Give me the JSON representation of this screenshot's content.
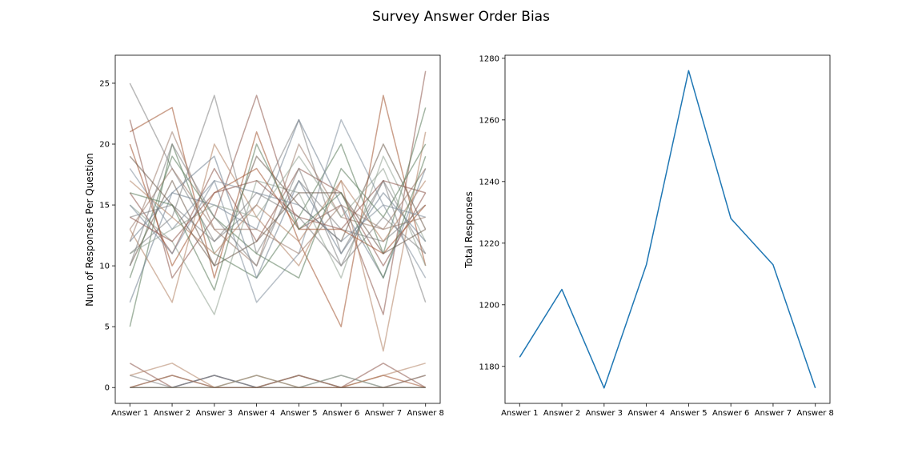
{
  "figure": {
    "title": "Survey Answer Order Bias"
  },
  "chart_data": [
    {
      "type": "line",
      "title": "",
      "xlabel": "",
      "ylabel": "Num of Responses Per Question",
      "categories": [
        "Answer 1",
        "Answer 2",
        "Answer 3",
        "Answer 4",
        "Answer 5",
        "Answer 6",
        "Answer 7",
        "Answer 8"
      ],
      "ylim": [
        -1.3,
        27.3
      ],
      "yticks": [
        0,
        5,
        10,
        15,
        20,
        25
      ],
      "grid": false,
      "legend": "none",
      "palette": [
        "#8c564b",
        "#7f7f7f",
        "#5a7a5a",
        "#a0522d",
        "#6f7f8f",
        "#b08060",
        "#8fa08f",
        "#9a7a6a",
        "#7d8c9a",
        "#6b5a4a"
      ],
      "series": [
        {
          "values": [
            22,
            9,
            14,
            24,
            13,
            15,
            6,
            26
          ],
          "color": "#8c564b"
        },
        {
          "values": [
            25,
            18,
            12,
            15,
            22,
            11,
            17,
            7
          ],
          "color": "#7f7f7f"
        },
        {
          "values": [
            5,
            20,
            11,
            9,
            14,
            20,
            11,
            23
          ],
          "color": "#5a7a5a"
        },
        {
          "values": [
            21,
            23,
            9,
            21,
            12,
            5,
            24,
            10
          ],
          "color": "#a0522d"
        },
        {
          "values": [
            11,
            14,
            24,
            11,
            17,
            13,
            12,
            15
          ],
          "color": "#7f7f7f"
        },
        {
          "values": [
            7,
            16,
            15,
            13,
            22,
            15,
            9,
            18
          ],
          "color": "#6f7f8f"
        },
        {
          "values": [
            13,
            7,
            20,
            14,
            10,
            17,
            3,
            21
          ],
          "color": "#b08060"
        },
        {
          "values": [
            15,
            12,
            6,
            17,
            16,
            9,
            19,
            12
          ],
          "color": "#8fa08f"
        },
        {
          "values": [
            12,
            21,
            13,
            10,
            20,
            14,
            13,
            14
          ],
          "color": "#9a7a6a"
        },
        {
          "values": [
            18,
            13,
            17,
            7,
            11,
            22,
            15,
            9
          ],
          "color": "#7d8c9a"
        },
        {
          "values": [
            10,
            17,
            10,
            19,
            15,
            12,
            20,
            13
          ],
          "color": "#6b5a4a"
        },
        {
          "values": [
            16,
            11,
            18,
            12,
            18,
            16,
            10,
            16
          ],
          "color": "#8c564b"
        },
        {
          "values": [
            14,
            15,
            12,
            16,
            14,
            10,
            17,
            11
          ],
          "color": "#7f7f7f"
        },
        {
          "values": [
            9,
            19,
            14,
            11,
            9,
            18,
            14,
            20
          ],
          "color": "#5a7a5a"
        },
        {
          "values": [
            20,
            10,
            16,
            18,
            13,
            13,
            11,
            15
          ],
          "color": "#a0522d"
        },
        {
          "values": [
            12,
            16,
            19,
            9,
            17,
            11,
            16,
            12
          ],
          "color": "#6f7f8f"
        },
        {
          "values": [
            17,
            14,
            11,
            15,
            12,
            17,
            12,
            17
          ],
          "color": "#b08060"
        },
        {
          "values": [
            11,
            13,
            15,
            14,
            19,
            14,
            18,
            10
          ],
          "color": "#8fa08f"
        },
        {
          "values": [
            13,
            18,
            13,
            13,
            11,
            15,
            13,
            18
          ],
          "color": "#9a7a6a"
        },
        {
          "values": [
            15,
            11,
            17,
            16,
            15,
            12,
            15,
            14
          ],
          "color": "#7d8c9a"
        },
        {
          "values": [
            19,
            15,
            10,
            12,
            16,
            16,
            11,
            13
          ],
          "color": "#6b5a4a"
        },
        {
          "values": [
            14,
            12,
            16,
            17,
            14,
            13,
            17,
            16
          ],
          "color": "#8c564b"
        },
        {
          "values": [
            10,
            20,
            14,
            10,
            18,
            10,
            14,
            11
          ],
          "color": "#7f7f7f"
        },
        {
          "values": [
            16,
            15,
            8,
            20,
            13,
            16,
            9,
            19
          ],
          "color": "#5a7a5a"
        },
        {
          "values": [
            2,
            0,
            1,
            0,
            1,
            0,
            2,
            0
          ],
          "color": "#8c564b"
        },
        {
          "values": [
            1,
            0,
            1,
            0,
            0,
            1,
            0,
            1
          ],
          "color": "#7f7f7f"
        },
        {
          "values": [
            0,
            1,
            0,
            1,
            0,
            0,
            1,
            0
          ],
          "color": "#a0522d"
        },
        {
          "values": [
            0,
            0,
            1,
            0,
            1,
            0,
            0,
            0
          ],
          "color": "#6f7f8f"
        },
        {
          "values": [
            1,
            2,
            0,
            0,
            1,
            0,
            1,
            2
          ],
          "color": "#b08060"
        },
        {
          "values": [
            0,
            0,
            0,
            1,
            0,
            1,
            0,
            0
          ],
          "color": "#8fa08f"
        },
        {
          "values": [
            0,
            1,
            0,
            0,
            1,
            0,
            0,
            1
          ],
          "color": "#9a7a6a"
        },
        {
          "values": [
            0,
            0,
            0,
            0,
            0,
            0,
            0,
            0
          ],
          "color": "#6b5a4a"
        }
      ]
    },
    {
      "type": "line",
      "title": "",
      "xlabel": "",
      "ylabel": "Total Responses",
      "categories": [
        "Answer 1",
        "Answer 2",
        "Answer 3",
        "Answer 4",
        "Answer 5",
        "Answer 6",
        "Answer 7",
        "Answer 8"
      ],
      "ylim": [
        1168,
        1281
      ],
      "yticks": [
        1180,
        1200,
        1220,
        1240,
        1260,
        1280
      ],
      "grid": false,
      "legend": "none",
      "series": [
        {
          "values": [
            1183,
            1205,
            1173,
            1213,
            1276,
            1228,
            1213,
            1173
          ],
          "color": "#1f77b4"
        }
      ]
    }
  ]
}
